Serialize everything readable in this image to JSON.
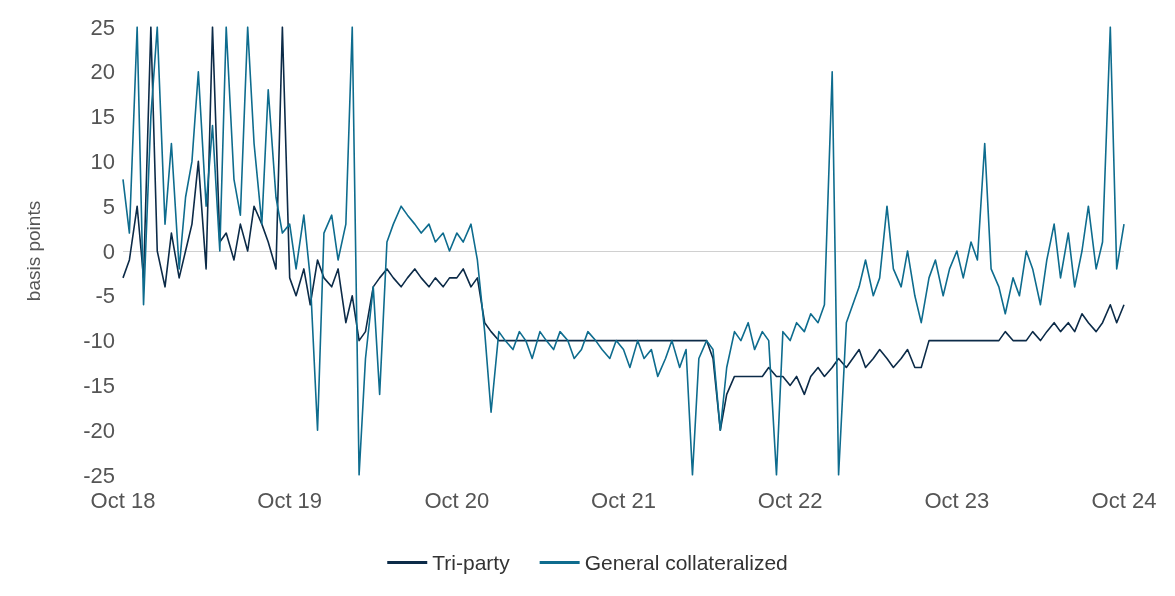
{
  "chart_data": {
    "type": "line",
    "ylabel": "basis points",
    "ylim": [
      -25,
      25
    ],
    "yticks": [
      -25,
      -20,
      -15,
      -10,
      -5,
      0,
      5,
      10,
      15,
      20,
      25
    ],
    "xlim": [
      "2018-10-01",
      "2024-10-01"
    ],
    "xticks": [
      {
        "value": "2018-10-01",
        "label": "Oct 18"
      },
      {
        "value": "2019-10-01",
        "label": "Oct 19"
      },
      {
        "value": "2020-10-01",
        "label": "Oct 20"
      },
      {
        "value": "2021-10-01",
        "label": "Oct 21"
      },
      {
        "value": "2022-10-01",
        "label": "Oct 22"
      },
      {
        "value": "2023-10-01",
        "label": "Oct 23"
      },
      {
        "value": "2024-10-01",
        "label": "Oct 24"
      }
    ],
    "x": [
      "2018-10-01",
      "2018-10-15",
      "2018-11-01",
      "2018-11-15",
      "2018-12-01",
      "2018-12-15",
      "2019-01-01",
      "2019-01-15",
      "2019-02-01",
      "2019-02-15",
      "2019-03-01",
      "2019-03-15",
      "2019-04-01",
      "2019-04-15",
      "2019-05-01",
      "2019-05-15",
      "2019-06-01",
      "2019-06-15",
      "2019-07-01",
      "2019-07-15",
      "2019-08-01",
      "2019-08-15",
      "2019-09-01",
      "2019-09-15",
      "2019-10-01",
      "2019-10-15",
      "2019-11-01",
      "2019-11-15",
      "2019-12-01",
      "2019-12-15",
      "2020-01-01",
      "2020-01-15",
      "2020-02-01",
      "2020-02-15",
      "2020-03-01",
      "2020-03-15",
      "2020-04-01",
      "2020-04-15",
      "2020-05-01",
      "2020-05-15",
      "2020-06-01",
      "2020-06-15",
      "2020-07-01",
      "2020-07-15",
      "2020-08-01",
      "2020-08-15",
      "2020-09-01",
      "2020-09-15",
      "2020-10-01",
      "2020-10-15",
      "2020-11-01",
      "2020-11-15",
      "2020-12-01",
      "2020-12-15",
      "2021-01-01",
      "2021-01-15",
      "2021-02-01",
      "2021-02-15",
      "2021-03-01",
      "2021-03-15",
      "2021-04-01",
      "2021-04-15",
      "2021-05-01",
      "2021-05-15",
      "2021-06-01",
      "2021-06-15",
      "2021-07-01",
      "2021-07-15",
      "2021-08-01",
      "2021-08-15",
      "2021-09-01",
      "2021-09-15",
      "2021-10-01",
      "2021-10-15",
      "2021-11-01",
      "2021-11-15",
      "2021-12-01",
      "2021-12-15",
      "2022-01-01",
      "2022-01-15",
      "2022-02-01",
      "2022-02-15",
      "2022-03-01",
      "2022-03-15",
      "2022-04-01",
      "2022-04-15",
      "2022-05-01",
      "2022-05-15",
      "2022-06-01",
      "2022-06-15",
      "2022-07-01",
      "2022-07-15",
      "2022-08-01",
      "2022-08-15",
      "2022-09-01",
      "2022-09-15",
      "2022-10-01",
      "2022-10-15",
      "2022-11-01",
      "2022-11-15",
      "2022-12-01",
      "2022-12-15",
      "2023-01-01",
      "2023-01-15",
      "2023-02-01",
      "2023-02-15",
      "2023-03-01",
      "2023-03-15",
      "2023-04-01",
      "2023-04-15",
      "2023-05-01",
      "2023-05-15",
      "2023-06-01",
      "2023-06-15",
      "2023-07-01",
      "2023-07-15",
      "2023-08-01",
      "2023-08-15",
      "2023-09-01",
      "2023-09-15",
      "2023-10-01",
      "2023-10-15",
      "2023-11-01",
      "2023-11-15",
      "2023-12-01",
      "2023-12-15",
      "2024-01-01",
      "2024-01-15",
      "2024-02-01",
      "2024-02-15",
      "2024-03-01",
      "2024-03-15",
      "2024-04-01",
      "2024-04-15",
      "2024-05-01",
      "2024-05-15",
      "2024-06-01",
      "2024-06-15",
      "2024-07-01",
      "2024-07-15",
      "2024-08-01",
      "2024-08-15",
      "2024-09-01",
      "2024-09-15",
      "2024-10-01"
    ],
    "series": [
      {
        "name": "Tri-party",
        "color": "#0c2b48",
        "values": [
          -3,
          -1,
          5,
          -3,
          25,
          0,
          -4,
          2,
          -3,
          0,
          3,
          10,
          -2,
          25,
          1,
          2,
          -1,
          3,
          0,
          5,
          3,
          1,
          -2,
          25,
          -3,
          -5,
          -2,
          -6,
          -1,
          -3,
          -4,
          -2,
          -8,
          -5,
          -10,
          -9,
          -4,
          -3,
          -2,
          -3,
          -4,
          -3,
          -2,
          -3,
          -4,
          -3,
          -4,
          -3,
          -3,
          -2,
          -4,
          -3,
          -8,
          -9,
          -10,
          -10,
          -10,
          -10,
          -10,
          -10,
          -10,
          -10,
          -10,
          -10,
          -10,
          -10,
          -10,
          -10,
          -10,
          -10,
          -10,
          -10,
          -10,
          -10,
          -10,
          -10,
          -10,
          -10,
          -10,
          -10,
          -10,
          -10,
          -10,
          -10,
          -10,
          -12,
          -20,
          -16,
          -14,
          -14,
          -14,
          -14,
          -14,
          -13,
          -14,
          -14,
          -15,
          -14,
          -16,
          -14,
          -13,
          -14,
          -13,
          -12,
          -13,
          -12,
          -11,
          -13,
          -12,
          -11,
          -12,
          -13,
          -12,
          -11,
          -13,
          -13,
          -10,
          -10,
          -10,
          -10,
          -10,
          -10,
          -10,
          -10,
          -10,
          -10,
          -10,
          -9,
          -10,
          -10,
          -10,
          -9,
          -10,
          -9,
          -8,
          -9,
          -8,
          -9,
          -7,
          -8,
          -9,
          -8,
          -6,
          -8,
          -6
        ]
      },
      {
        "name": "General collateralized",
        "color": "#0e6c8e",
        "values": [
          8,
          2,
          25,
          -6,
          15,
          25,
          3,
          12,
          -2,
          6,
          10,
          20,
          5,
          14,
          0,
          25,
          8,
          4,
          25,
          12,
          3,
          18,
          6,
          2,
          3,
          -2,
          4,
          -3,
          -20,
          2,
          4,
          -1,
          3,
          25,
          -25,
          -12,
          -4,
          -16,
          1,
          3,
          5,
          4,
          3,
          2,
          3,
          1,
          2,
          0,
          2,
          1,
          3,
          -1,
          -9,
          -18,
          -9,
          -10,
          -11,
          -9,
          -10,
          -12,
          -9,
          -10,
          -11,
          -9,
          -10,
          -12,
          -11,
          -9,
          -10,
          -11,
          -12,
          -10,
          -11,
          -13,
          -10,
          -12,
          -11,
          -14,
          -12,
          -10,
          -13,
          -11,
          -25,
          -12,
          -10,
          -11,
          -20,
          -13,
          -9,
          -10,
          -8,
          -11,
          -9,
          -10,
          -25,
          -9,
          -10,
          -8,
          -9,
          -7,
          -8,
          -6,
          20,
          -25,
          -8,
          -6,
          -4,
          -1,
          -5,
          -3,
          5,
          -2,
          -4,
          0,
          -5,
          -8,
          -3,
          -1,
          -5,
          -2,
          0,
          -3,
          1,
          -1,
          12,
          -2,
          -4,
          -7,
          -3,
          -5,
          0,
          -2,
          -6,
          -1,
          3,
          -3,
          2,
          -4,
          0,
          5,
          -2,
          1,
          25,
          -2,
          3
        ]
      }
    ],
    "ref_lines": [
      {
        "axis": "y",
        "value": 0,
        "color": "#d0d0d0"
      }
    ],
    "legend": "bottom",
    "grid": false
  }
}
